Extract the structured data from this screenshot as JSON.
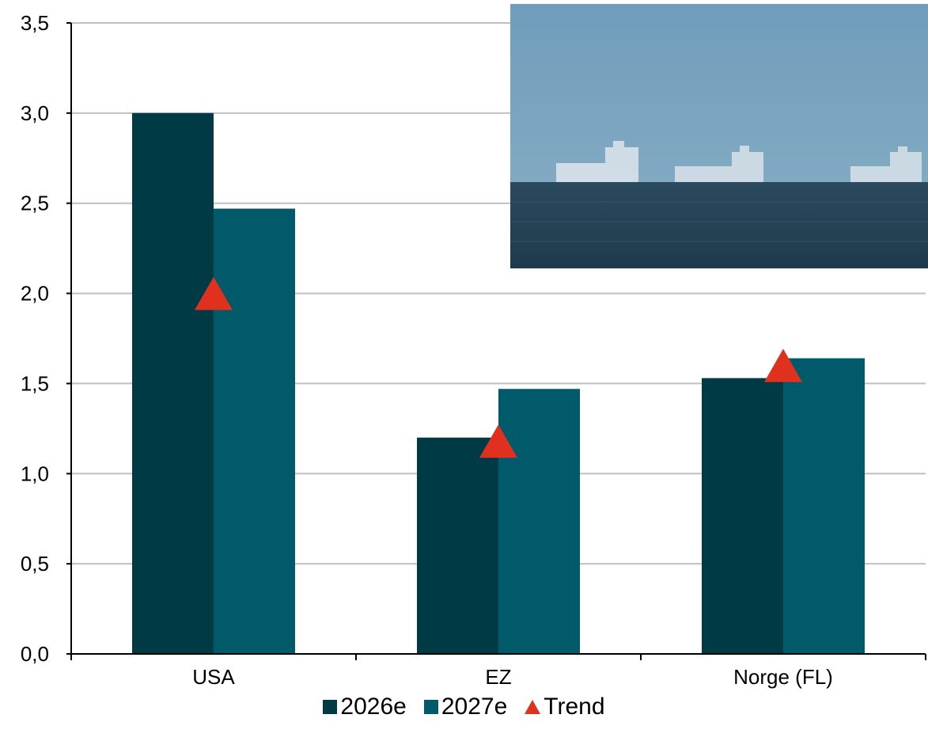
{
  "chart_data": {
    "type": "bar",
    "categories": [
      "USA",
      "EZ",
      "Norge (FL)"
    ],
    "series": [
      {
        "name": "2026e",
        "type": "bar",
        "color": "#003a44",
        "values": [
          3.0,
          1.2,
          1.53
        ]
      },
      {
        "name": "2027e",
        "type": "bar",
        "color": "#005a6a",
        "values": [
          2.47,
          1.47,
          1.64
        ]
      },
      {
        "name": "Trend",
        "type": "marker",
        "marker": "triangle",
        "color": "#e0301e",
        "values": [
          2.0,
          1.18,
          1.6
        ]
      }
    ],
    "yticks": [
      "0,0",
      "0,5",
      "1,0",
      "1,5",
      "2,0",
      "2,5",
      "3,0",
      "3,5"
    ],
    "ylim": [
      0,
      3.5
    ],
    "grid": true,
    "legend_position": "bottom",
    "inset_image": "ships-at-sea-photo"
  }
}
